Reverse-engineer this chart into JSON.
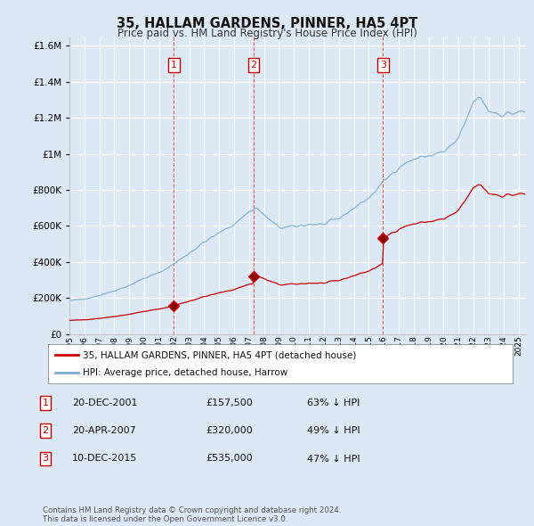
{
  "title": "35, HALLAM GARDENS, PINNER, HA5 4PT",
  "subtitle": "Price paid vs. HM Land Registry's House Price Index (HPI)",
  "ytick_values": [
    0,
    200000,
    400000,
    600000,
    800000,
    1000000,
    1200000,
    1400000,
    1600000
  ],
  "ylim": [
    0,
    1650000
  ],
  "xlim_start": 1995.0,
  "xlim_end": 2025.5,
  "bg_color": "#dde8f5",
  "plot_bg_color": "#dde8f5",
  "grid_color": "#ffffff",
  "red_color": "#cc0000",
  "blue_color": "#7aadd4",
  "vline_color": "#ee3333",
  "sale_dates": [
    2001.97,
    2007.31,
    2015.95
  ],
  "sale_prices": [
    157500,
    320000,
    535000
  ],
  "sale_labels": [
    "1",
    "2",
    "3"
  ],
  "sale_table": [
    [
      "1",
      "20-DEC-2001",
      "£157,500",
      "63% ↓ HPI"
    ],
    [
      "2",
      "20-APR-2007",
      "£320,000",
      "49% ↓ HPI"
    ],
    [
      "3",
      "10-DEC-2015",
      "£535,000",
      "47% ↓ HPI"
    ]
  ],
  "legend_labels": [
    "35, HALLAM GARDENS, PINNER, HA5 4PT (detached house)",
    "HPI: Average price, detached house, Harrow"
  ],
  "footer": "Contains HM Land Registry data © Crown copyright and database right 2024.\nThis data is licensed under the Open Government Licence v3.0."
}
